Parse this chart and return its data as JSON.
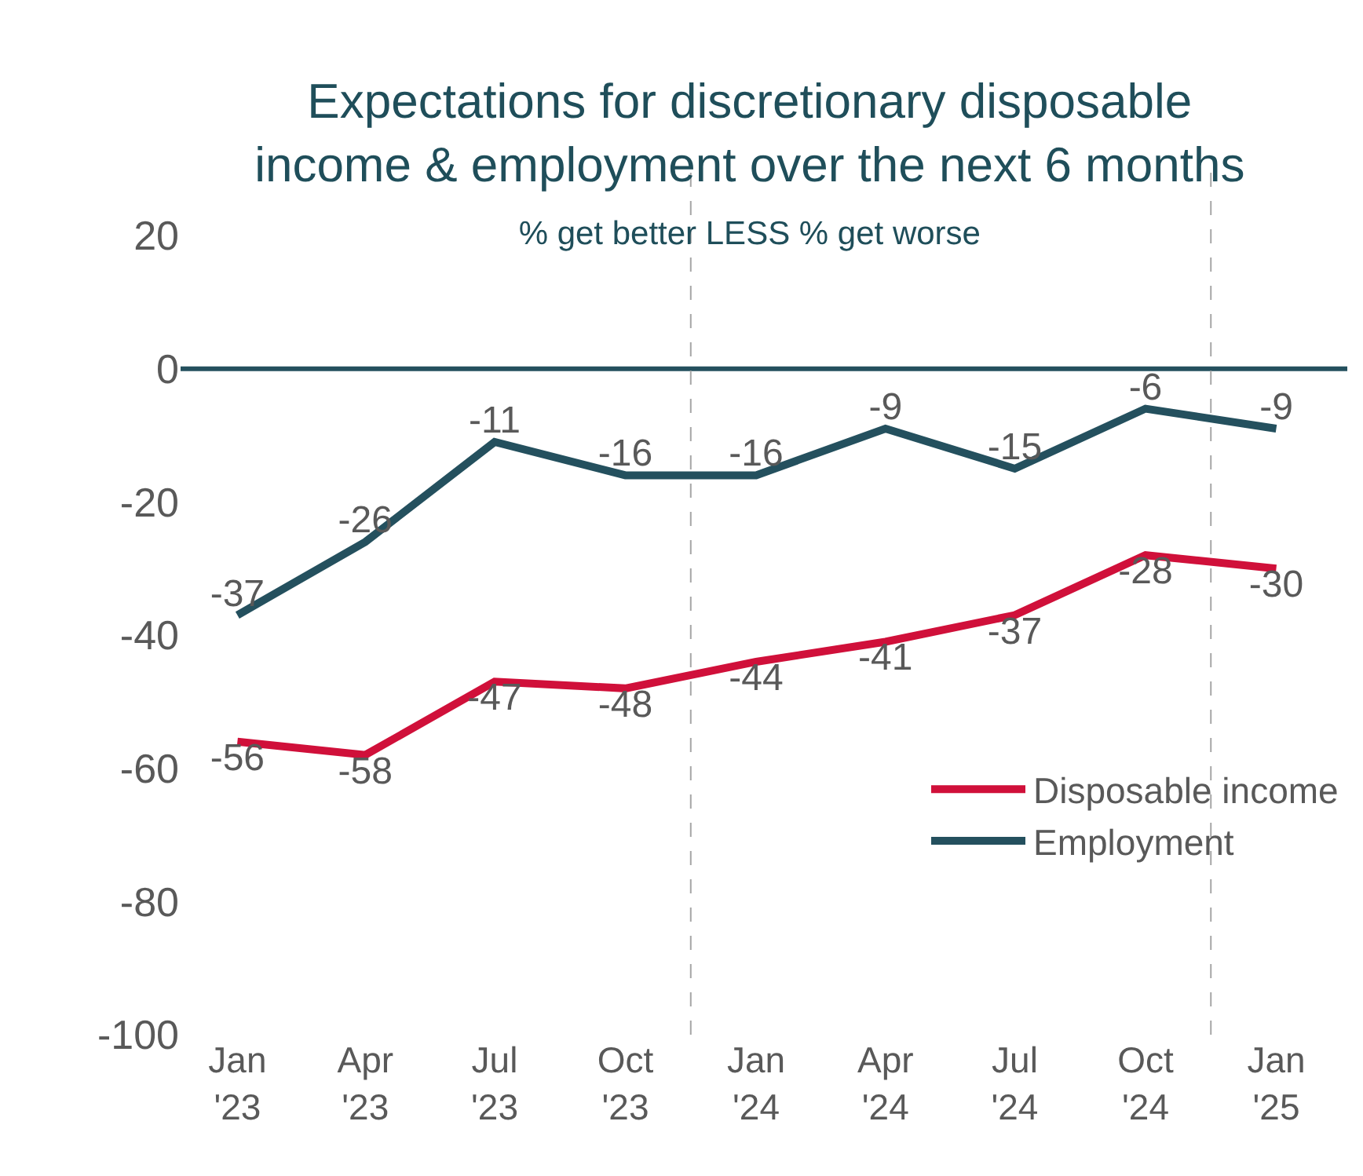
{
  "chart_data": {
    "type": "line",
    "title": "Expectations for discretionary disposable\nincome & employment over the next 6 months",
    "subtitle": "% get better LESS % get worse",
    "x": [
      "2023-01",
      "2023-04",
      "2023-07",
      "2023-10",
      "2024-01",
      "2024-04",
      "2024-07",
      "2024-10",
      "2025-01"
    ],
    "xlim": [
      "2022-11-22",
      "2025-02-20"
    ],
    "xticks": [
      {
        "value": "2023-01",
        "label": "Jan\n'23"
      },
      {
        "value": "2023-04",
        "label": "Apr\n'23"
      },
      {
        "value": "2023-07",
        "label": "Jul\n'23"
      },
      {
        "value": "2023-10",
        "label": "Oct\n'23"
      },
      {
        "value": "2024-01",
        "label": "Jan\n'24"
      },
      {
        "value": "2024-04",
        "label": "Apr\n'24"
      },
      {
        "value": "2024-07",
        "label": "Jul\n'24"
      },
      {
        "value": "2024-10",
        "label": "Oct\n'24"
      },
      {
        "value": "2025-01",
        "label": "Jan\n'25"
      }
    ],
    "ylim": [
      -100,
      20
    ],
    "yticks": [
      -100,
      -80,
      -60,
      -40,
      -20,
      0,
      20
    ],
    "series": [
      {
        "name": "Disposable income",
        "color": "#d0103a",
        "values": [
          -56,
          -58,
          -47,
          -48,
          -44,
          -41,
          -37,
          -28,
          -30
        ]
      },
      {
        "name": "Employment",
        "color": "#24505e",
        "values": [
          -37,
          -26,
          -11,
          -16,
          -16,
          -9,
          -15,
          -6,
          -9
        ]
      }
    ],
    "ref_lines": [
      {
        "axis": "y",
        "value": 0,
        "color": "#24505e",
        "line_style": "solid"
      },
      {
        "axis": "x",
        "value": "2023-11-16",
        "color": "#a6a6a6",
        "line_style": "dashed"
      },
      {
        "axis": "x",
        "value": "2024-11-16",
        "color": "#a6a6a6",
        "line_style": "dashed"
      }
    ],
    "data_labels": true,
    "grid": false,
    "legend": "bottom right",
    "marker": "none",
    "line_style": "solid"
  }
}
